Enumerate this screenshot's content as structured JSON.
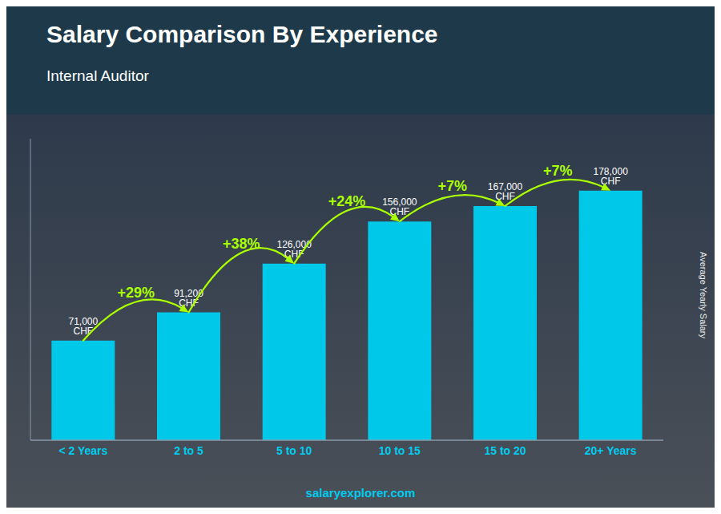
{
  "chart_data": {
    "type": "bar",
    "title": "Salary Comparison By Experience",
    "subtitle": "Internal Auditor",
    "ylabel": "Average Yearly Salary",
    "source": "salaryexplorer.com",
    "categories": [
      "< 2 Years",
      "2 to 5",
      "5 to 10",
      "10 to 15",
      "15 to 20",
      "20+ Years"
    ],
    "values": [
      71000,
      91200,
      126000,
      156000,
      167000,
      178000
    ],
    "value_labels": [
      "71,000 CHF",
      "91,200 CHF",
      "126,000 CHF",
      "156,000 CHF",
      "167,000 CHF",
      "178,000 CHF"
    ],
    "data_labels": true,
    "annotations": [
      null,
      "+29%",
      "+38%",
      "+24%",
      "+7%",
      "+7%"
    ],
    "color": "#00c8e8",
    "ylim": [
      0,
      215000
    ],
    "grid": false,
    "tick_labels": "x"
  }
}
